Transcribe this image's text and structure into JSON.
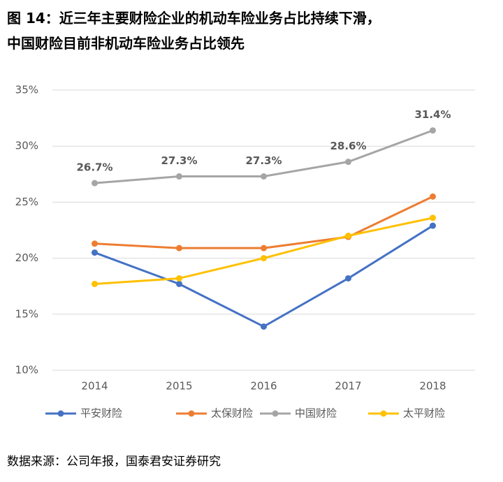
{
  "chart_data": {
    "type": "line",
    "title": "图 14：近三年主要财险企业的机动车险业务占比持续下滑，\n中国财险目前非机动车险业务占比领先",
    "source": "数据来源：公司年报，国泰君安证券研究",
    "categories": [
      "2014",
      "2015",
      "2016",
      "2017",
      "2018"
    ],
    "series": [
      {
        "name": "平安财险",
        "color": "#4472c4",
        "values": [
          20.5,
          17.7,
          13.9,
          18.2,
          22.9
        ]
      },
      {
        "name": "太保财险",
        "color": "#ed7d31",
        "values": [
          21.3,
          20.9,
          20.9,
          21.9,
          25.5
        ]
      },
      {
        "name": "中国财险",
        "color": "#a5a5a5",
        "values": [
          26.7,
          27.3,
          27.3,
          28.6,
          31.4
        ],
        "value_labels": [
          "26.7%",
          "27.3%",
          "27.3%",
          "28.6%",
          "31.4%"
        ]
      },
      {
        "name": "太平财险",
        "color": "#ffc000",
        "values": [
          17.7,
          18.2,
          20.0,
          22.0,
          23.6
        ]
      }
    ],
    "ylim": [
      10,
      35
    ],
    "yticks": [
      {
        "value": 10,
        "label": "10%"
      },
      {
        "value": 15,
        "label": "15%"
      },
      {
        "value": 20,
        "label": "20%"
      },
      {
        "value": 25,
        "label": "25%"
      },
      {
        "value": 30,
        "label": "30%"
      },
      {
        "value": 35,
        "label": "35%"
      }
    ],
    "grid": true,
    "legend": "bottom"
  }
}
